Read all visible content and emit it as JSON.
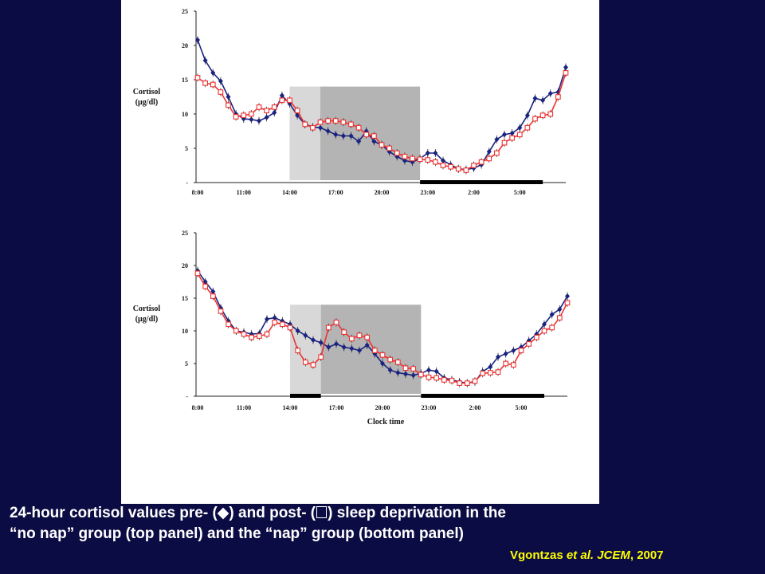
{
  "chart_data": [
    {
      "type": "line",
      "panel": "top",
      "ylabel": "Cortisol\n(µg/dl)",
      "ylim": [
        0,
        25
      ],
      "y_ticks": [
        "-",
        "5",
        "10",
        "15",
        "20",
        "25"
      ],
      "x_tick_labels": [
        "8:00",
        "11:00",
        "14:00",
        "17:00",
        "20:00",
        "23:00",
        "2:00",
        "5:00"
      ],
      "x_hours_start": 8,
      "x_hours_end": 32,
      "shaded_regions": [
        {
          "from": 14,
          "to": 16,
          "color": "#d8d8d8"
        },
        {
          "from": 16,
          "to": 22.5,
          "color": "#b4b4b4"
        }
      ],
      "black_bars": [
        {
          "from": 22.5,
          "to": 30.5
        }
      ],
      "series": [
        {
          "marker": "diamond",
          "color": "#1a237e",
          "x": [
            8,
            8.5,
            9,
            9.5,
            10,
            10.5,
            11,
            11.5,
            12,
            12.5,
            13,
            13.5,
            14,
            14.5,
            15,
            15.5,
            16,
            16.5,
            17,
            17.5,
            18,
            18.5,
            19,
            19.5,
            20,
            20.5,
            21,
            21.5,
            22,
            22.5,
            23,
            23.5,
            24,
            24.5,
            25,
            25.5,
            26,
            26.5,
            27,
            27.5,
            28,
            28.5,
            29,
            29.5,
            30,
            30.5,
            31,
            31.5,
            32
          ],
          "y": [
            20.8,
            17.8,
            16.0,
            14.8,
            12.5,
            10.0,
            9.3,
            9.2,
            9.0,
            9.5,
            10.2,
            12.7,
            11.5,
            9.8,
            8.5,
            8.1,
            8.0,
            7.5,
            7.0,
            6.8,
            6.8,
            6.0,
            7.5,
            6.0,
            5.5,
            4.5,
            3.8,
            3.2,
            3.0,
            3.5,
            4.3,
            4.3,
            3.2,
            2.6,
            2.0,
            1.9,
            2.1,
            2.6,
            4.5,
            6.3,
            7.0,
            7.2,
            8.0,
            9.8,
            12.3,
            12.0,
            13.0,
            13.2,
            16.8
          ]
        },
        {
          "marker": "square",
          "color": "#ee3333",
          "x": [
            8,
            8.5,
            9,
            9.5,
            10,
            10.5,
            11,
            11.5,
            12,
            12.5,
            13,
            13.5,
            14,
            14.5,
            15,
            15.5,
            16,
            16.5,
            17,
            17.5,
            18,
            18.5,
            19,
            19.5,
            20,
            20.5,
            21,
            21.5,
            22,
            22.5,
            23,
            23.5,
            24,
            24.5,
            25,
            25.5,
            26,
            26.5,
            27,
            27.5,
            28,
            28.5,
            29,
            29.5,
            30,
            30.5,
            31,
            31.5,
            32
          ],
          "y": [
            15.3,
            14.5,
            14.3,
            13.2,
            11.3,
            9.6,
            9.8,
            10.0,
            11.0,
            10.5,
            11.0,
            12.0,
            12.0,
            10.5,
            8.5,
            8.0,
            8.8,
            9.0,
            9.0,
            8.8,
            8.5,
            8.0,
            7.0,
            6.8,
            5.5,
            5.0,
            4.3,
            3.8,
            3.5,
            3.4,
            3.3,
            3.0,
            2.5,
            2.3,
            2.0,
            1.8,
            2.5,
            3.0,
            3.5,
            4.3,
            5.8,
            6.5,
            7.0,
            8.0,
            9.3,
            9.8,
            10.0,
            12.5,
            16.0
          ]
        }
      ]
    },
    {
      "type": "line",
      "panel": "bottom",
      "ylabel": "Cortisol\n(µg/dl)",
      "xlabel": "Clock time",
      "ylim": [
        0,
        25
      ],
      "y_ticks": [
        "-",
        "5",
        "10",
        "15",
        "20",
        "25"
      ],
      "x_tick_labels": [
        "8:00",
        "11:00",
        "14:00",
        "17:00",
        "20:00",
        "23:00",
        "2:00",
        "5:00"
      ],
      "x_hours_start": 8,
      "x_hours_end": 32,
      "shaded_regions": [
        {
          "from": 14,
          "to": 16,
          "color": "#d8d8d8"
        },
        {
          "from": 16,
          "to": 22.5,
          "color": "#b4b4b4"
        }
      ],
      "black_bars": [
        {
          "from": 14,
          "to": 16
        },
        {
          "from": 22.5,
          "to": 30.5
        }
      ],
      "series": [
        {
          "marker": "diamond",
          "color": "#1a237e",
          "x": [
            8,
            8.5,
            9,
            9.5,
            10,
            10.5,
            11,
            11.5,
            12,
            12.5,
            13,
            13.5,
            14,
            14.5,
            15,
            15.5,
            16,
            16.5,
            17,
            17.5,
            18,
            18.5,
            19,
            19.5,
            20,
            20.5,
            21,
            21.5,
            22,
            22.5,
            23,
            23.5,
            24,
            24.5,
            25,
            25.5,
            26,
            26.5,
            27,
            27.5,
            28,
            28.5,
            29,
            29.5,
            30,
            30.5,
            31,
            31.5,
            32
          ],
          "y": [
            19.2,
            17.5,
            16.0,
            13.5,
            11.5,
            10.0,
            9.8,
            9.5,
            9.6,
            11.8,
            12.0,
            11.5,
            11.0,
            10.0,
            9.3,
            8.6,
            8.2,
            7.5,
            8.0,
            7.5,
            7.3,
            7.0,
            7.8,
            6.5,
            5.0,
            4.0,
            3.6,
            3.4,
            3.2,
            3.5,
            4.0,
            3.8,
            2.8,
            2.5,
            2.2,
            2.0,
            2.2,
            3.8,
            4.5,
            6.0,
            6.5,
            7.0,
            7.5,
            8.5,
            9.5,
            11.0,
            12.5,
            13.3,
            15.3
          ]
        },
        {
          "marker": "square",
          "color": "#ee3333",
          "x": [
            8,
            8.5,
            9,
            9.5,
            10,
            10.5,
            11,
            11.5,
            12,
            12.5,
            13,
            13.5,
            14,
            14.5,
            15,
            15.5,
            16,
            16.5,
            17,
            17.5,
            18,
            18.5,
            19,
            19.5,
            20,
            20.5,
            21,
            21.5,
            22,
            22.5,
            23,
            23.5,
            24,
            24.5,
            25,
            25.5,
            26,
            26.5,
            27,
            27.5,
            28,
            28.5,
            29,
            29.5,
            30,
            30.5,
            31,
            31.5,
            32
          ],
          "y": [
            18.8,
            16.8,
            15.3,
            13.0,
            11.0,
            10.0,
            9.5,
            9.0,
            9.2,
            9.5,
            11.3,
            11.0,
            10.5,
            7.0,
            5.2,
            4.8,
            6.0,
            10.5,
            11.3,
            9.8,
            8.8,
            9.3,
            9.0,
            7.0,
            6.3,
            5.6,
            5.2,
            4.3,
            4.2,
            3.3,
            2.9,
            2.8,
            2.5,
            2.4,
            2.0,
            2.0,
            2.3,
            3.5,
            3.6,
            3.7,
            5.0,
            4.8,
            7.0,
            8.0,
            9.0,
            10.0,
            10.5,
            12.0,
            14.3
          ]
        }
      ]
    }
  ],
  "caption": {
    "line1_a": "24-hour cortisol values pre- (",
    "line1_sym1": "◆",
    "line1_b": ") and post- (",
    "line1_c": ") sleep deprivation in the",
    "line2": "“no nap” group (top panel) and the “nap” group (bottom panel)"
  },
  "citation": {
    "author": "Vgontzas ",
    "etal": "et al.",
    "journal": " JCEM",
    "year": ", 2007"
  }
}
